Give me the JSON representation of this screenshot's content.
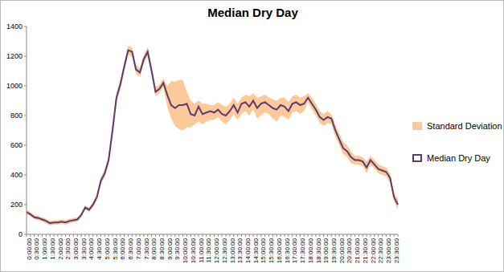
{
  "chart_data": {
    "type": "line",
    "title": "Median Dry Day",
    "categories": [
      "0:00:00",
      null,
      "0:30:00",
      null,
      "1:00:00",
      null,
      "1:30:00",
      null,
      "2:00:00",
      null,
      "2:30:00",
      null,
      "3:00:00",
      null,
      "3:30:00",
      null,
      "4:00:00",
      null,
      "4:30:00",
      null,
      "5:00:00",
      null,
      "5:30:00",
      null,
      "6:00:00",
      null,
      "6:30:00",
      null,
      "7:00:00",
      null,
      "7:30:00",
      null,
      "8:00:00",
      null,
      "8:30:00",
      null,
      "9:00:00",
      null,
      "9:30:00",
      null,
      "10:00:00",
      null,
      "10:30:00",
      null,
      "11:00:00",
      null,
      "11:30:00",
      null,
      "12:00:00",
      null,
      "12:30:00",
      null,
      "13:00:00",
      null,
      "13:30:00",
      null,
      "14:00:00",
      null,
      "14:30:00",
      null,
      "15:00:00",
      null,
      "15:30:00",
      null,
      "16:00:00",
      null,
      "16:30:00",
      null,
      "17:00:00",
      null,
      "17:30:00",
      null,
      "18:00:00",
      null,
      "18:30:00",
      null,
      "19:00:00",
      null,
      "19:30:00",
      null,
      "20:00:00",
      null,
      "20:30:00",
      null,
      "21:00:00",
      null,
      "21:30:00",
      null,
      "22:00:00",
      null,
      "22:30:00",
      null,
      "23:00:00",
      null,
      "23:30:00",
      null
    ],
    "series": [
      {
        "name": "Standard Deviation",
        "type": "area",
        "color": "#fbc99a",
        "lower": [
          135,
          120,
          100,
          95,
          85,
          75,
          60,
          65,
          65,
          70,
          65,
          75,
          80,
          85,
          115,
          165,
          150,
          180,
          230,
          335,
          385,
          470,
          670,
          890,
          980,
          1100,
          1210,
          1200,
          1080,
          1060,
          1150,
          1200,
          1070,
          930,
          950,
          990,
          860,
          780,
          730,
          710,
          700,
          720,
          720,
          740,
          760,
          740,
          760,
          770,
          770,
          790,
          760,
          740,
          770,
          810,
          770,
          810,
          830,
          800,
          840,
          780,
          800,
          820,
          810,
          780,
          760,
          800,
          790,
          770,
          820,
          830,
          810,
          830,
          890,
          840,
          800,
          750,
          730,
          750,
          740,
          660,
          600,
          540,
          520,
          480,
          470,
          470,
          460,
          410,
          470,
          440,
          410,
          400,
          390,
          350,
          220,
          170
        ],
        "upper": [
          165,
          150,
          130,
          125,
          115,
          105,
          90,
          95,
          95,
          100,
          95,
          105,
          110,
          115,
          145,
          195,
          180,
          220,
          270,
          385,
          435,
          530,
          730,
          950,
          1040,
          1160,
          1270,
          1260,
          1140,
          1120,
          1210,
          1260,
          1130,
          990,
          1010,
          1050,
          1000,
          1030,
          1030,
          1040,
          1040,
          960,
          900,
          880,
          900,
          880,
          880,
          870,
          870,
          890,
          870,
          860,
          880,
          920,
          880,
          920,
          940,
          930,
          950,
          920,
          930,
          940,
          920,
          910,
          900,
          920,
          920,
          890,
          930,
          940,
          920,
          930,
          950,
          920,
          880,
          830,
          810,
          830,
          810,
          740,
          680,
          620,
          600,
          560,
          530,
          530,
          520,
          490,
          530,
          500,
          470,
          460,
          450,
          410,
          280,
          240
        ]
      },
      {
        "name": "Median Dry Day",
        "type": "line",
        "color": "#5c3b70",
        "values": [
          150,
          135,
          115,
          110,
          100,
          90,
          75,
          80,
          80,
          85,
          80,
          90,
          95,
          100,
          130,
          180,
          165,
          200,
          250,
          360,
          410,
          500,
          700,
          920,
          1010,
          1130,
          1240,
          1230,
          1110,
          1090,
          1180,
          1230,
          1100,
          960,
          980,
          1020,
          940,
          870,
          850,
          870,
          870,
          880,
          810,
          800,
          860,
          810,
          820,
          830,
          820,
          840,
          810,
          800,
          830,
          870,
          820,
          880,
          890,
          860,
          900,
          850,
          880,
          890,
          870,
          850,
          840,
          870,
          860,
          830,
          880,
          890,
          870,
          880,
          920,
          880,
          840,
          790,
          770,
          790,
          780,
          700,
          640,
          580,
          560,
          520,
          500,
          500,
          490,
          450,
          500,
          470,
          440,
          430,
          420,
          380,
          250,
          200
        ]
      }
    ],
    "ylim": [
      0,
      1400
    ],
    "yticks": [
      0,
      200,
      400,
      600,
      800,
      1000,
      1200,
      1400
    ],
    "grid": false,
    "legend": "right"
  }
}
